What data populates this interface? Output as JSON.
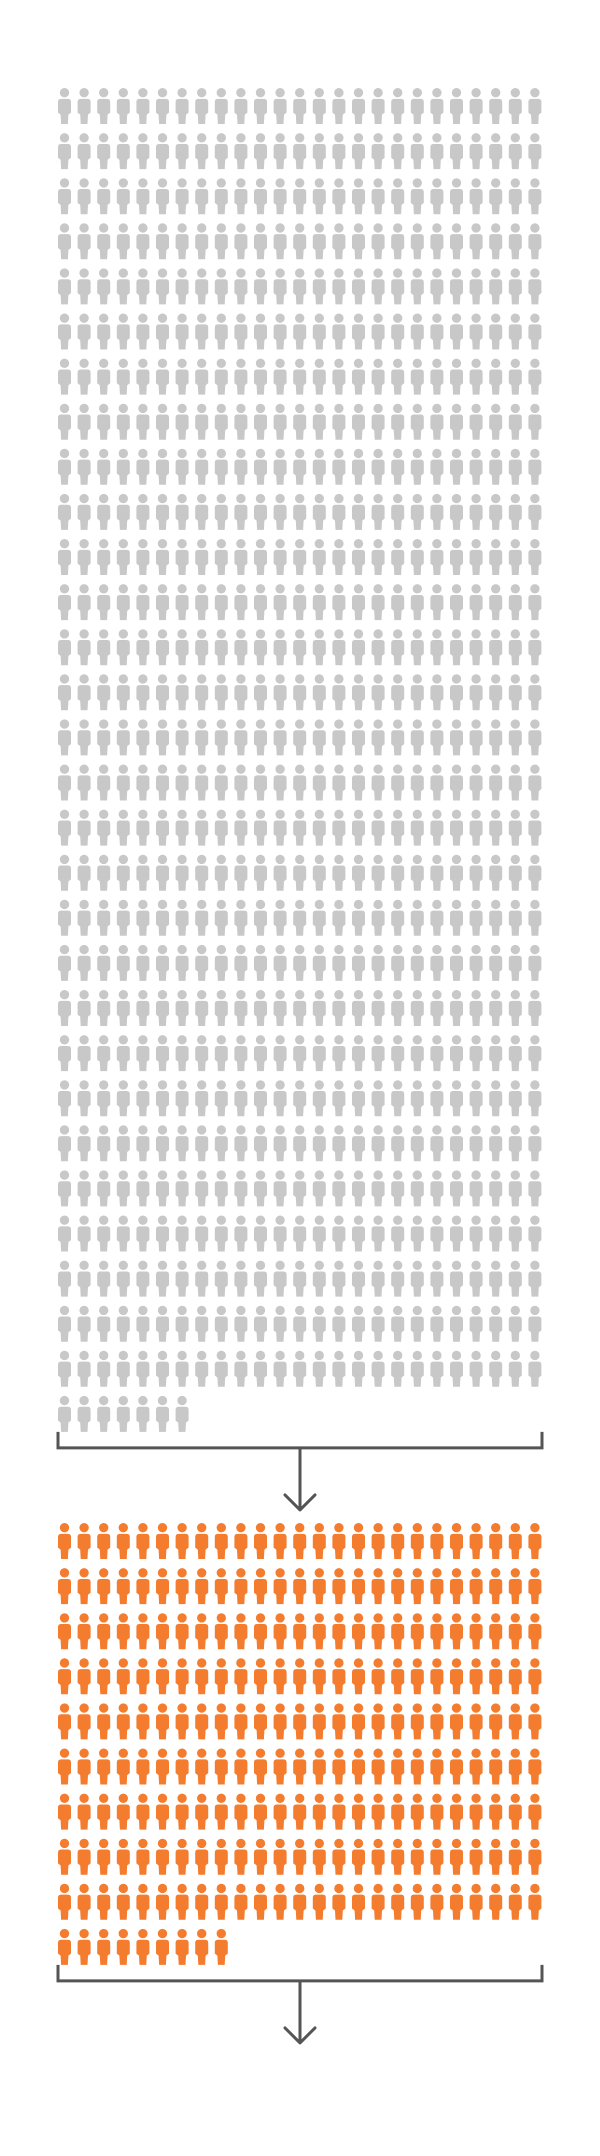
{
  "chart_data": {
    "type": "pictograph",
    "title": "",
    "groups": [
      {
        "name": "",
        "count": 732,
        "per_row": 25,
        "color": "#c8c8c8",
        "icon": "person-icon"
      },
      {
        "name": "",
        "count": 234,
        "per_row": 25,
        "color": "#f47c2f",
        "icon": "person-icon"
      }
    ],
    "connector_color": "#555555",
    "connector_icon": "arrow-down-icon"
  }
}
